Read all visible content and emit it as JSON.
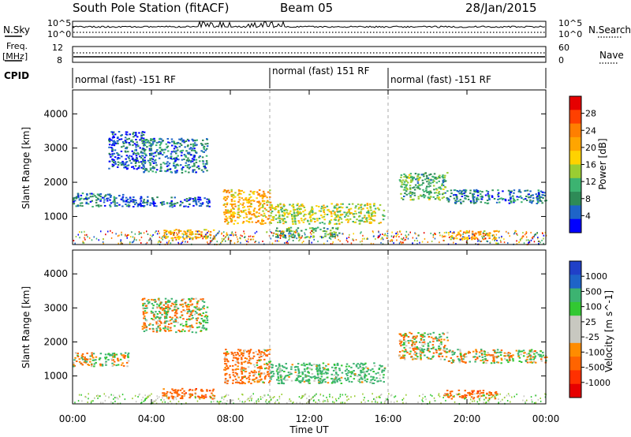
{
  "header": {
    "station": "South Pole Station (fitACF)",
    "beam": "Beam 05",
    "date": "28/Jan/2015"
  },
  "strips": {
    "nsky_label": "N.Sky",
    "nsky_ticks": [
      "10^5",
      "10^0"
    ],
    "nsearch_label": "N.Search",
    "nsearch_ticks": [
      "10^5",
      "10^0"
    ],
    "freq_label_line1": "Freq.",
    "freq_label_line2": "[MHz]",
    "freq_ticks": [
      "12",
      "8"
    ],
    "nave_label": "Nave",
    "nave_ticks": [
      "60",
      "0"
    ],
    "cpid_label": "CPID",
    "cpid_segments": [
      {
        "text": "normal (fast) -151 RF",
        "start_hour": 0,
        "end_hour": 10
      },
      {
        "text": "normal (fast) 151 RF",
        "start_hour": 10,
        "end_hour": 16
      },
      {
        "text": "normal (fast) -151 RF",
        "start_hour": 16,
        "end_hour": 24
      }
    ]
  },
  "power_panel": {
    "ylabel": "Slant Range [km]",
    "yticks": [
      "4000",
      "3000",
      "2000",
      "1000"
    ],
    "colorbar_label": "Power [dB]",
    "colorbar_ticks": [
      "28",
      "24",
      "20",
      "16",
      "12",
      "8",
      "4"
    ],
    "colors": [
      "#e60000",
      "#ff4000",
      "#ff7f00",
      "#ffa500",
      "#ffd200",
      "#9acd32",
      "#3cb371",
      "#2e8b57",
      "#1e64c8",
      "#0000ff"
    ]
  },
  "velocity_panel": {
    "ylabel": "Slant Range [km]",
    "yticks": [
      "4000",
      "3000",
      "2000",
      "1000"
    ],
    "colorbar_label": "Velocity [m s^-1]",
    "colorbar_ticks": [
      "1000",
      "500",
      "100",
      "25",
      "-25",
      "-100",
      "-500",
      "-1000"
    ],
    "colors": [
      "#2040c8",
      "#1e64c8",
      "#3cb371",
      "#32c832",
      "#c8c8c0",
      "#c8c8c0",
      "#ff8c00",
      "#ff6400",
      "#ff3000",
      "#e60000"
    ]
  },
  "x_axis": {
    "label": "Time UT",
    "ticks": [
      "00:00",
      "04:00",
      "08:00",
      "12:00",
      "16:00",
      "20:00",
      "00:00"
    ]
  },
  "chart_data": {
    "type": "heatmap",
    "description_fields": {
      "x_unit": "hours UT",
      "y_unit": "km"
    },
    "xlim": [
      0,
      24
    ],
    "ylim": [
      180,
      4700
    ],
    "power_range_db": [
      0,
      30
    ],
    "velocity_range": [
      -1000,
      1000
    ],
    "echo_regions_power": [
      {
        "t0": 0.0,
        "t1": 2.8,
        "r0": 1300,
        "r1": 1700,
        "level": 8
      },
      {
        "t0": 1.8,
        "t1": 3.6,
        "r0": 2400,
        "r1": 3500,
        "level": 6
      },
      {
        "t0": 3.5,
        "t1": 6.8,
        "r0": 2300,
        "r1": 3300,
        "level": 8
      },
      {
        "t0": 2.8,
        "t1": 7.0,
        "r0": 1300,
        "r1": 1600,
        "level": 6
      },
      {
        "t0": 4.5,
        "t1": 7.2,
        "r0": 350,
        "r1": 650,
        "level": 20
      },
      {
        "t0": 7.6,
        "t1": 10.0,
        "r0": 800,
        "r1": 1800,
        "level": 20
      },
      {
        "t0": 10.0,
        "t1": 15.8,
        "r0": 800,
        "r1": 1400,
        "level": 16
      },
      {
        "t0": 10.2,
        "t1": 13.5,
        "r0": 400,
        "r1": 700,
        "level": 12
      },
      {
        "t0": 16.5,
        "t1": 19.0,
        "r0": 1500,
        "r1": 2300,
        "level": 12
      },
      {
        "t0": 19.0,
        "t1": 24.0,
        "r0": 1400,
        "r1": 1800,
        "level": 8
      },
      {
        "t0": 18.8,
        "t1": 21.5,
        "r0": 350,
        "r1": 600,
        "level": 20
      }
    ],
    "echo_regions_velocity": [
      {
        "t0": 0.0,
        "t1": 2.8,
        "r0": 1300,
        "r1": 1700,
        "vel": 0
      },
      {
        "t0": 3.5,
        "t1": 6.8,
        "r0": 2300,
        "r1": 3300,
        "vel": 0
      },
      {
        "t0": 4.5,
        "t1": 7.2,
        "r0": 350,
        "r1": 650,
        "vel": -300
      },
      {
        "t0": 7.6,
        "t1": 10.0,
        "r0": 800,
        "r1": 1800,
        "vel": -200
      },
      {
        "t0": 10.0,
        "t1": 15.8,
        "r0": 800,
        "r1": 1400,
        "vel": 200
      },
      {
        "t0": 16.5,
        "t1": 19.0,
        "r0": 1500,
        "r1": 2300,
        "vel": 0
      },
      {
        "t0": 19.0,
        "t1": 24.0,
        "r0": 1400,
        "r1": 1800,
        "vel": 0
      },
      {
        "t0": 18.8,
        "t1": 21.5,
        "r0": 350,
        "r1": 600,
        "vel": -300
      }
    ]
  }
}
